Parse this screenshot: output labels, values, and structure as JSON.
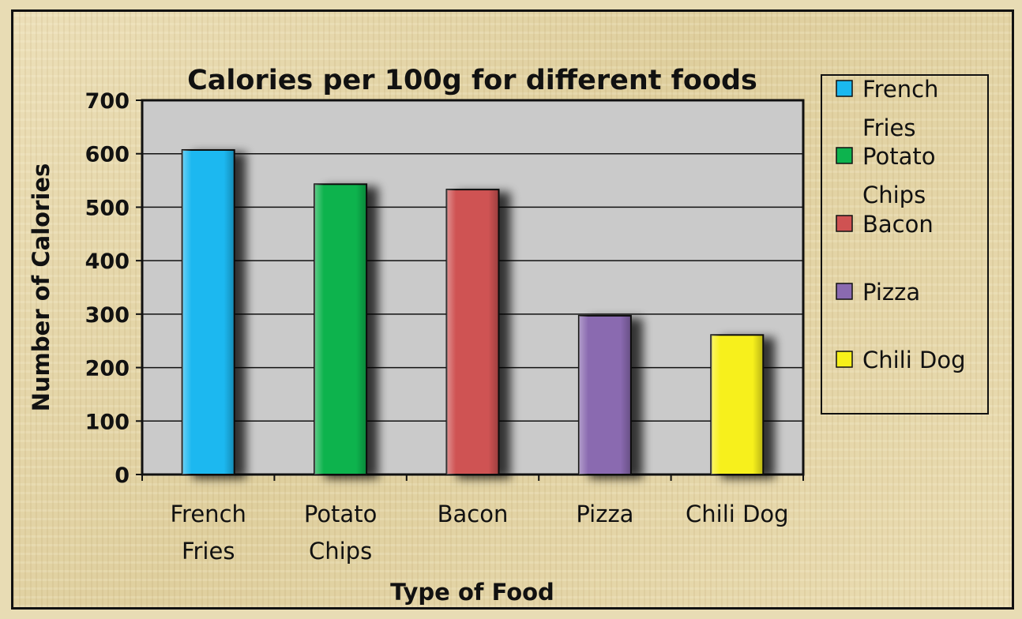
{
  "chart_data": {
    "type": "bar",
    "title": "Calories per 100g for different foods",
    "xlabel": "Type of Food",
    "ylabel": "Number of Calories",
    "categories": [
      [
        "French",
        "Fries"
      ],
      [
        "Potato",
        "Chips"
      ],
      [
        "Bacon"
      ],
      [
        "Pizza"
      ],
      [
        "Chili Dog"
      ]
    ],
    "values": [
      607,
      543,
      533,
      297,
      261
    ],
    "colors": [
      "#1ab8f0",
      "#0db34e",
      "#cf5252",
      "#8a6ab0",
      "#f7f01a"
    ],
    "ylim": [
      0,
      700
    ],
    "yticks": [
      0,
      100,
      200,
      300,
      400,
      500,
      600,
      700
    ],
    "grid": true,
    "legend": {
      "position": "right",
      "entries": [
        [
          "French",
          "Fries"
        ],
        [
          "Potato",
          "Chips"
        ],
        [
          "Bacon"
        ],
        [
          "Pizza"
        ],
        [
          "Chili Dog"
        ]
      ]
    }
  }
}
